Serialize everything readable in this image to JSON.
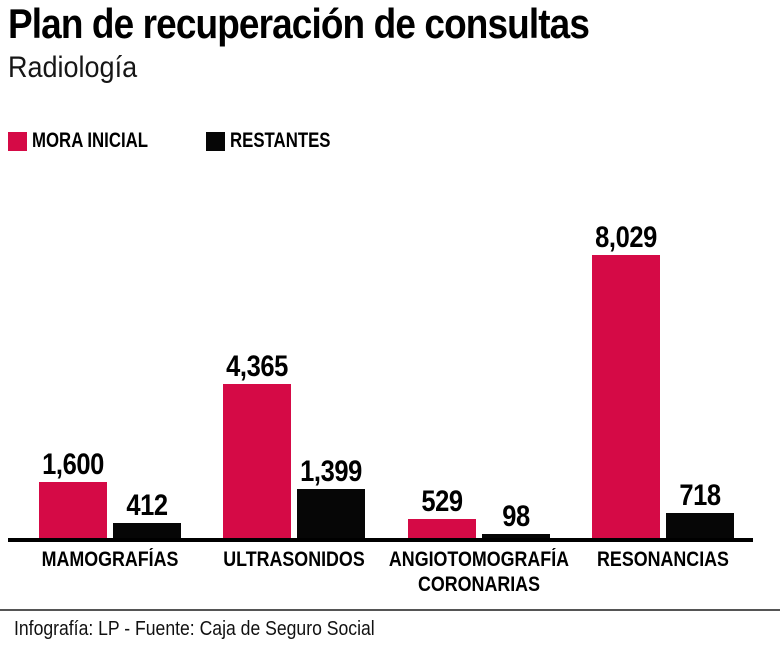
{
  "footer": {
    "source": "Infografía: LP - Fuente: Caja de Seguro Social"
  },
  "chart_data": {
    "type": "bar",
    "title": "Plan de recuperación de consultas",
    "subtitle": "Radiología",
    "categories": [
      "MAMOGRAFÍAS",
      "ULTRASONIDOS",
      "ANGIOTOMOGRAFÍA CORONARIAS",
      "RESONANCIAS"
    ],
    "series": [
      {
        "name": "MORA INICIAL",
        "color": "#d50a46",
        "values": [
          1600,
          4365,
          529,
          8029
        ],
        "labels": [
          "1,600",
          "4,365",
          "529",
          "8,029"
        ]
      },
      {
        "name": "RESTANTES",
        "color": "#060606",
        "values": [
          412,
          1399,
          98,
          718
        ],
        "labels": [
          "412",
          "1,399",
          "98",
          "718"
        ]
      }
    ],
    "xlabel": "",
    "ylabel": "",
    "ylim": [
      0,
      8029
    ],
    "grid": false,
    "legend_position": "top-left",
    "value_labels": true,
    "axis_color": "#000000"
  }
}
